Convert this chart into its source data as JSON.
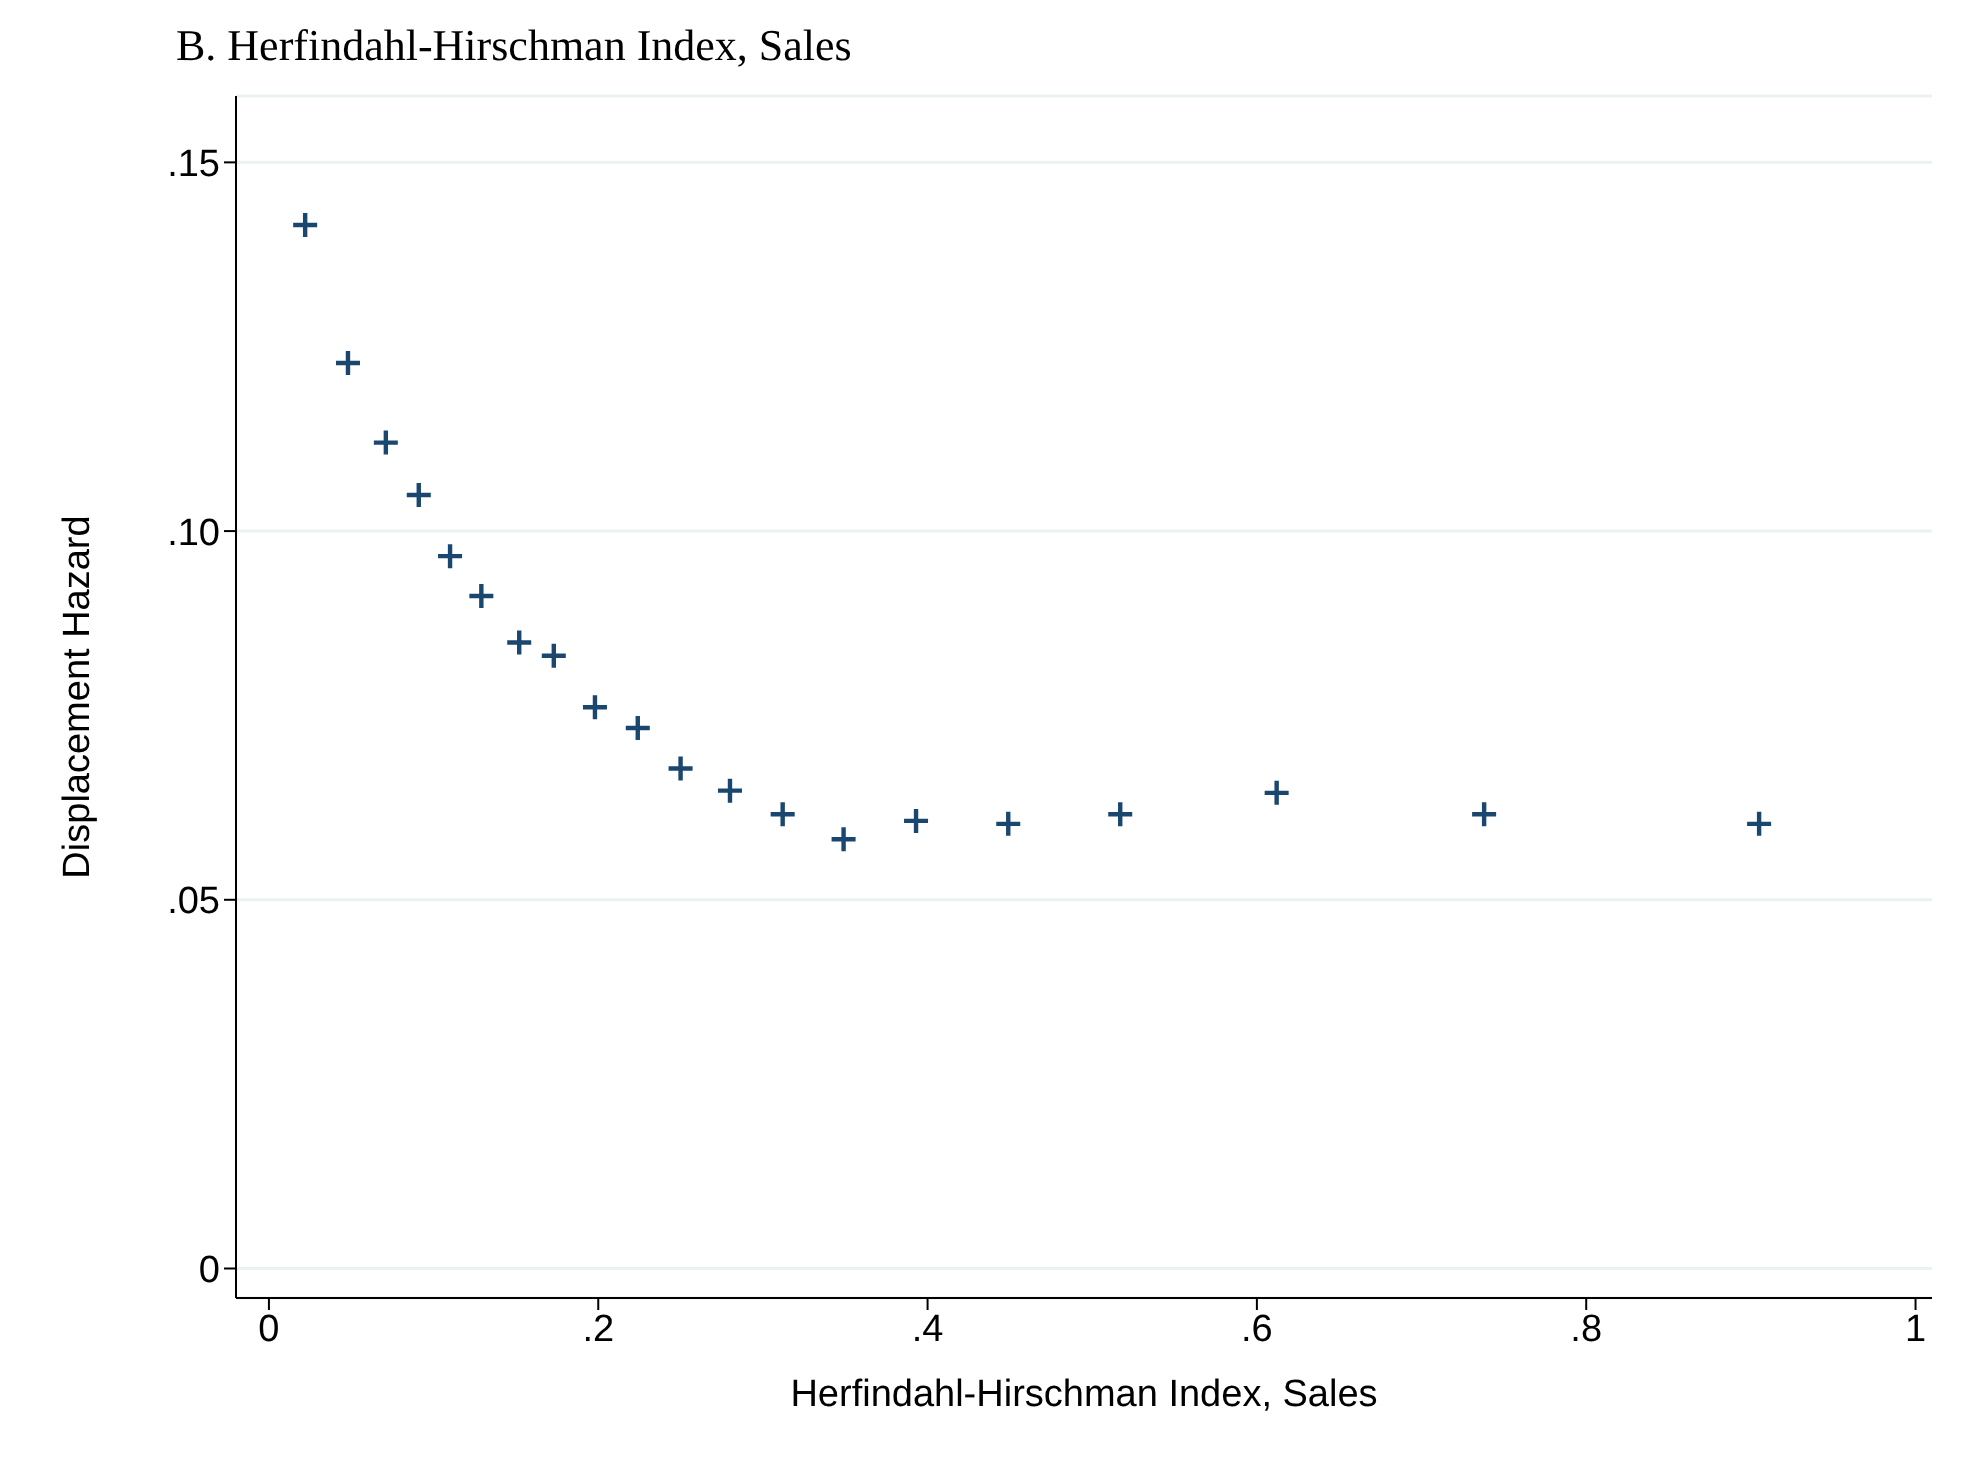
{
  "chart_data": {
    "type": "scatter",
    "title": "B.  Herfindahl-Hirschman Index, Sales",
    "xlabel": "Herfindahl-Hirschman Index, Sales",
    "ylabel": "Displacement Hazard",
    "x": [
      0.022,
      0.048,
      0.071,
      0.091,
      0.11,
      0.129,
      0.152,
      0.173,
      0.198,
      0.224,
      0.25,
      0.28,
      0.312,
      0.349,
      0.393,
      0.449,
      0.517,
      0.612,
      0.738,
      0.905
    ],
    "series": [
      {
        "color": "#1a476f",
        "values": [
          0.1415,
          0.1228,
          0.112,
          0.1049,
          0.0966,
          0.0912,
          0.0849,
          0.0831,
          0.0761,
          0.0733,
          0.0678,
          0.0648,
          0.0616,
          0.0582,
          0.0607,
          0.0603,
          0.0616,
          0.0645,
          0.0616,
          0.0603
        ]
      }
    ],
    "xlim": [
      -0.02,
      1.01
    ],
    "ylim": [
      -0.004,
      0.159
    ],
    "xticks": [
      0,
      {
        "value": 0.2,
        "label": ".2"
      },
      {
        "value": 0.4,
        "label": ".4"
      },
      {
        "value": 0.6,
        "label": ".6"
      },
      {
        "value": 0.8,
        "label": ".8"
      },
      1
    ],
    "yticks": [
      0,
      {
        "value": 0.05,
        "label": ".05"
      },
      {
        "value": 0.1,
        "label": ".10"
      },
      {
        "value": 0.15,
        "label": ".15"
      }
    ],
    "grid": "y",
    "marker": "cross"
  }
}
